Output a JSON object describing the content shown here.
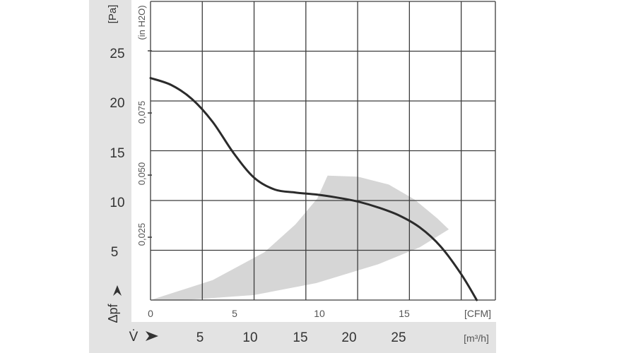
{
  "chart_data": {
    "type": "line",
    "y_unit_label": "[Pa]",
    "y_secondary_unit_label": "(in H2O)",
    "y_axis_symbol": "Δpf",
    "x_unit_label": "[CFM]",
    "x_secondary_unit_label": "[m³/h]",
    "x_axis_symbol": "V̇",
    "xlim_m3h": [
      0,
      33.3
    ],
    "ylim_pa": [
      0,
      30
    ],
    "y_ticks_pa": [
      "25",
      "20",
      "15",
      "10",
      "5"
    ],
    "y_ticks_inh2o": [
      "0,075",
      "0,050",
      "0,025"
    ],
    "x_ticks_cfm": [
      "0",
      "5",
      "10",
      "15"
    ],
    "x_ticks_m3h": [
      "5",
      "10",
      "15",
      "20",
      "25"
    ],
    "grid": true,
    "series": [
      {
        "values": [
          {
            "x": 0,
            "y": 22.3
          },
          {
            "x": 2,
            "y": 21.6
          },
          {
            "x": 4,
            "y": 20.2
          },
          {
            "x": 6,
            "y": 17.9
          },
          {
            "x": 8,
            "y": 14.8
          },
          {
            "x": 10,
            "y": 12.3
          },
          {
            "x": 12,
            "y": 11.1
          },
          {
            "x": 14,
            "y": 10.8
          },
          {
            "x": 16,
            "y": 10.6
          },
          {
            "x": 18,
            "y": 10.3
          },
          {
            "x": 20,
            "y": 9.9
          },
          {
            "x": 22,
            "y": 9.3
          },
          {
            "x": 24,
            "y": 8.5
          },
          {
            "x": 26,
            "y": 7.3
          },
          {
            "x": 28,
            "y": 5.4
          },
          {
            "x": 30,
            "y": 2.6
          },
          {
            "x": 31.5,
            "y": 0
          }
        ]
      }
    ],
    "operating_range": [
      {
        "x": 0,
        "y": 0
      },
      {
        "x": 6,
        "y": 2
      },
      {
        "x": 11,
        "y": 4.8
      },
      {
        "x": 14,
        "y": 7.6
      },
      {
        "x": 16.1,
        "y": 10.2
      },
      {
        "x": 17.1,
        "y": 12.5
      },
      {
        "x": 20,
        "y": 12.4
      },
      {
        "x": 23,
        "y": 11.6
      },
      {
        "x": 25.5,
        "y": 10.1
      },
      {
        "x": 27.7,
        "y": 8.2
      },
      {
        "x": 28.8,
        "y": 7.1
      },
      {
        "x": 26,
        "y": 5.3
      },
      {
        "x": 22,
        "y": 3.6
      },
      {
        "x": 16,
        "y": 1.7
      },
      {
        "x": 10,
        "y": 0.5
      },
      {
        "x": 4,
        "y": 0.05
      }
    ],
    "colors": {
      "curve": "#2b2b2b",
      "operating_range_fill": "#d6d6d6",
      "axis_panel": "#e3e3e3",
      "grid": "#3c3c3c"
    }
  }
}
